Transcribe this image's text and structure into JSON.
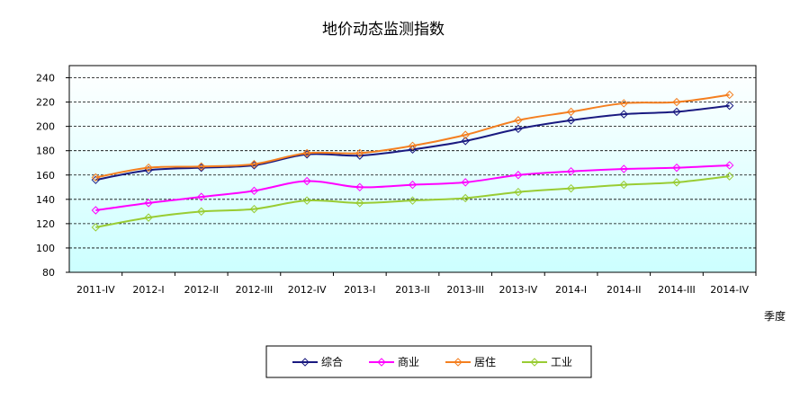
{
  "chart_data": {
    "type": "line",
    "title": "地价动态监测指数",
    "xlabel": "季度",
    "ylabel": "",
    "categories": [
      "2011-IV",
      "2012-I",
      "2012-II",
      "2012-III",
      "2012-IV",
      "2013-I",
      "2013-II",
      "2013-III",
      "2013-IV",
      "2014-I",
      "2014-II",
      "2014-III",
      "2014-IV"
    ],
    "ylim": [
      80,
      240
    ],
    "yticks": [
      80,
      100,
      120,
      140,
      160,
      180,
      200,
      220,
      240
    ],
    "grid": "horizontal dashed",
    "legend_position": "bottom",
    "series": [
      {
        "name": "综合",
        "color": "#1a1a80",
        "values": [
          156,
          164,
          166,
          168,
          177,
          176,
          181,
          188,
          198,
          205,
          210,
          212,
          217
        ]
      },
      {
        "name": "商业",
        "color": "#ff00ff",
        "values": [
          131,
          137,
          142,
          147,
          155,
          150,
          152,
          154,
          160,
          163,
          165,
          166,
          168
        ]
      },
      {
        "name": "居住",
        "color": "#f47f20",
        "values": [
          158,
          166,
          167,
          169,
          178,
          178,
          184,
          193,
          205,
          212,
          219,
          220,
          226
        ]
      },
      {
        "name": "工业",
        "color": "#99cc33",
        "values": [
          117,
          125,
          130,
          132,
          139,
          137,
          139,
          141,
          146,
          149,
          152,
          154,
          159
        ]
      }
    ]
  }
}
